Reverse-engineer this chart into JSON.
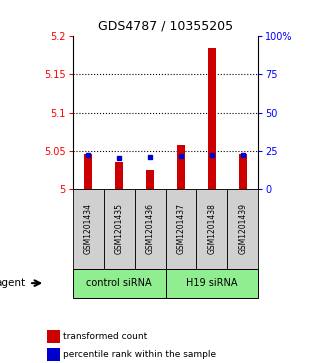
{
  "title": "GDS4787 / 10355205",
  "samples": [
    "GSM1201434",
    "GSM1201435",
    "GSM1201436",
    "GSM1201437",
    "GSM1201438",
    "GSM1201439"
  ],
  "group_labels": [
    "control siRNA",
    "H19 siRNA"
  ],
  "red_values": [
    5.046,
    5.035,
    5.025,
    5.057,
    5.185,
    5.046
  ],
  "blue_percentiles": [
    22,
    20,
    21,
    21.5,
    22,
    22
  ],
  "ylim_left": [
    5.0,
    5.2
  ],
  "ylim_right": [
    0,
    100
  ],
  "yticks_left": [
    5.0,
    5.05,
    5.1,
    5.15,
    5.2
  ],
  "yticks_right": [
    0,
    25,
    50,
    75,
    100
  ],
  "ytick_labels_left": [
    "5",
    "5.05",
    "5.1",
    "5.15",
    "5.2"
  ],
  "ytick_labels_right": [
    "0",
    "25",
    "50",
    "75",
    "100%"
  ],
  "grid_lines": [
    5.05,
    5.1,
    5.15
  ],
  "bar_bottom": 5.0,
  "red_color": "#cc0000",
  "blue_color": "#0000cc",
  "legend_red": "transformed count",
  "legend_blue": "percentile rank within the sample",
  "agent_label": "agent",
  "sample_box_color": "#d0d0d0",
  "group_box_color": "#90ee90"
}
